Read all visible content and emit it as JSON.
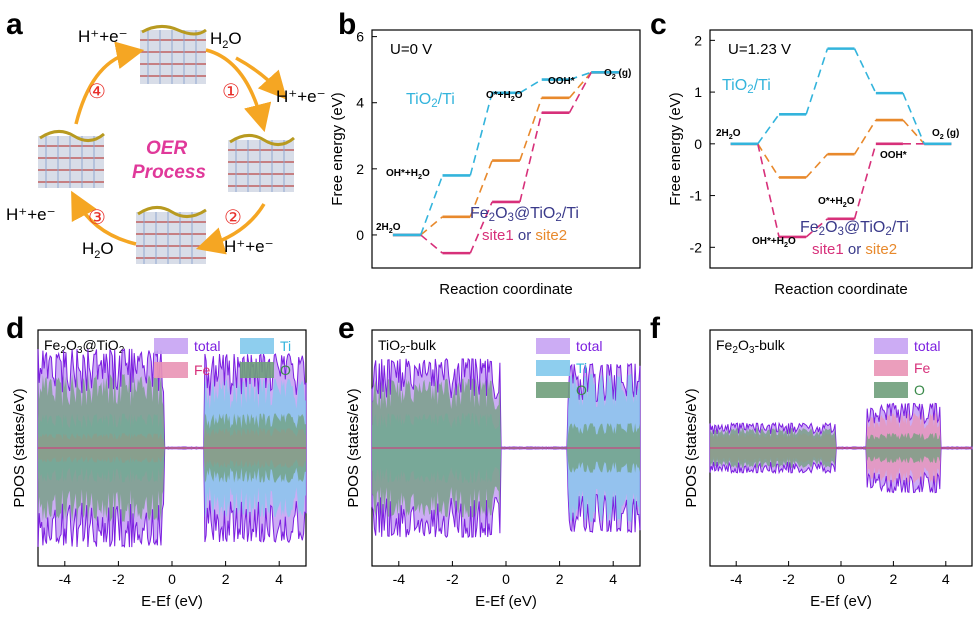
{
  "panel_labels": {
    "a": "a",
    "b": "b",
    "c": "c",
    "d": "d",
    "e": "e",
    "f": "f"
  },
  "cycle": {
    "title1": "OER",
    "title2": "Process",
    "steps": [
      {
        "num": "①",
        "in": "H2O",
        "out": "H⁺+e⁻"
      },
      {
        "num": "②",
        "in": "H2O",
        "out": "H⁺+e⁻"
      },
      {
        "num": "③",
        "in": "H2O",
        "out": "H⁺+e⁻"
      },
      {
        "num": "④",
        "in": "H2O",
        "out": "H⁺+e⁻"
      }
    ],
    "labels": {
      "h2o_top": "H",
      "h2o_top_sub": "2",
      "h2o_top_o": "O",
      "hpe_right": "H⁺+e⁻",
      "hpe_top": "H⁺+e⁻",
      "hpe_left": "H⁺+e⁻",
      "hpe_bottom": "H⁺+e⁻",
      "h2o_bottom": "H",
      "h2o_bottom_sub": "2",
      "h2o_bottom_o": "O"
    }
  },
  "colors": {
    "tio2": "#33b4dc",
    "site1": "#d7307a",
    "site2": "#e8892c",
    "total_fill": "#c7a3f3",
    "total_line": "#7c1fe0",
    "ti_fill": "#82c9ec",
    "fe_fill": "#e994b5",
    "o_fill": "#6f9f7b",
    "orange_arrow": "#f5a623",
    "magenta_text": "#e0399a",
    "red_circle": "#e8302b"
  },
  "chart_data": [
    {
      "id": "b",
      "type": "line",
      "title": "U=0 V",
      "xlabel": "Reaction coordinate",
      "ylabel": "Free energy (eV)",
      "ylim": [
        -1,
        6.2
      ],
      "yticks": [
        0,
        2,
        4,
        6
      ],
      "steps": [
        "2H2O",
        "OH*+H2O",
        "O*+H2O",
        "OOH*",
        "O2 (g)"
      ],
      "series": [
        {
          "name": "TiO2/Ti",
          "values": [
            0,
            1.8,
            4.3,
            4.7,
            4.92
          ]
        },
        {
          "name": "site1",
          "values": [
            0,
            -0.55,
            1.0,
            3.7,
            4.92
          ]
        },
        {
          "name": "site2",
          "values": [
            0,
            0.55,
            2.25,
            4.15,
            4.92
          ]
        }
      ],
      "annotations": {
        "series_label": "TiO2/Ti",
        "legend_line1": "Fe2O3@TiO2/Ti",
        "legend_site1": "site1",
        "legend_or": "or",
        "legend_site2": "site2",
        "step_labels": [
          "2H2O",
          "OH*+H2O",
          "O*+H2O",
          "OOH*",
          "O2 (g)"
        ]
      }
    },
    {
      "id": "c",
      "type": "line",
      "title": "U=1.23 V",
      "xlabel": "Reaction coordinate",
      "ylabel": "Free energy (eV)",
      "ylim": [
        -2.4,
        2.2
      ],
      "yticks": [
        -2,
        -1,
        0,
        1,
        2
      ],
      "series": [
        {
          "name": "TiO2/Ti",
          "values": [
            0,
            0.57,
            1.84,
            0.98,
            0
          ]
        },
        {
          "name": "site1",
          "values": [
            0,
            -1.8,
            -1.45,
            0,
            0
          ]
        },
        {
          "name": "site2",
          "values": [
            0,
            -0.65,
            -0.2,
            0.46,
            0
          ]
        }
      ],
      "annotations": {
        "series_label": "TiO2/Ti",
        "legend_line1": "Fe2O3@TiO2/Ti",
        "legend_site1": "site1",
        "legend_or": "or",
        "legend_site2": "site2",
        "step_labels": [
          "2H2O",
          "OH*+H2O",
          "O*+H2O",
          "OOH*",
          "O2 (g)"
        ]
      }
    },
    {
      "id": "d",
      "type": "area",
      "title": "Fe2O3@TiO2",
      "xlabel": "E-Ef (eV)",
      "ylabel": "PDOS (states/eV)",
      "xlim": [
        -5,
        5
      ],
      "xticks": [
        -4,
        -2,
        0,
        2,
        4
      ],
      "legend": [
        "total",
        "Ti",
        "Fe",
        "O"
      ],
      "bands": [
        {
          "from": -5,
          "to": -0.3,
          "total": 1.0,
          "ti": 0.35,
          "fe": 0.15,
          "o": 0.75
        },
        {
          "from": 1.2,
          "to": 5,
          "total": 0.95,
          "ti": 0.7,
          "fe": 0.2,
          "o": 0.35
        }
      ]
    },
    {
      "id": "e",
      "type": "area",
      "title": "TiO2-bulk",
      "xlabel": "E-Ef (eV)",
      "ylabel": "PDOS (states/eV)",
      "xlim": [
        -5,
        5
      ],
      "xticks": [
        -4,
        -2,
        0,
        2,
        4
      ],
      "legend": [
        "total",
        "Ti",
        "O"
      ],
      "bands": [
        {
          "from": -5,
          "to": -0.2,
          "total": 0.9,
          "ti": 0.35,
          "o": 0.7
        },
        {
          "from": 2.3,
          "to": 5,
          "total": 0.85,
          "ti": 0.75,
          "o": 0.25
        }
      ]
    },
    {
      "id": "f",
      "type": "area",
      "title": "Fe2O3-bulk",
      "xlabel": "E-Ef (eV)",
      "ylabel": "PDOS (states/eV)",
      "xlim": [
        -5,
        5
      ],
      "xticks": [
        -4,
        -2,
        0,
        2,
        4
      ],
      "legend": [
        "total",
        "Fe",
        "O"
      ],
      "bands": [
        {
          "from": -5,
          "to": -0.2,
          "total": 0.25,
          "fe": 0.15,
          "o": 0.2
        },
        {
          "from": 1.0,
          "to": 3.8,
          "total": 0.45,
          "fe": 0.35,
          "o": 0.15
        }
      ]
    }
  ]
}
